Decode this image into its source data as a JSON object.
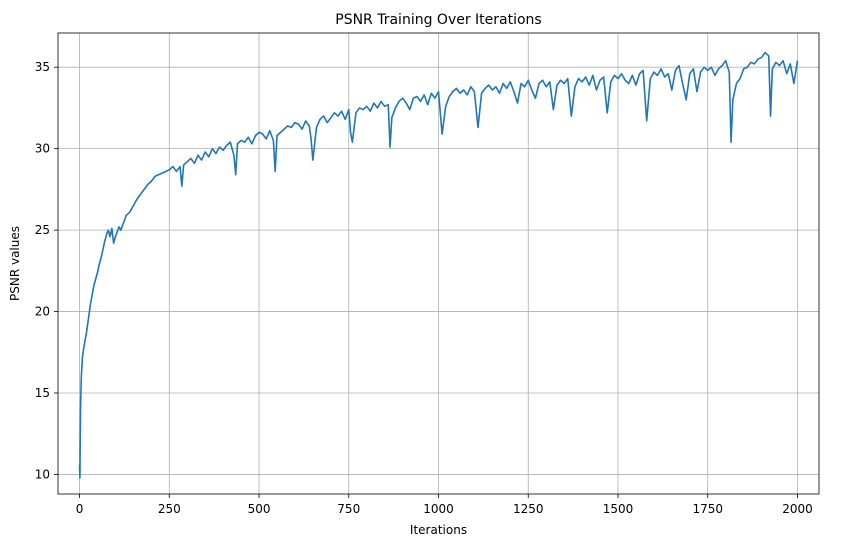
{
  "chart_data": {
    "type": "line",
    "title": "PSNR Training Over Iterations",
    "xlabel": "Iterations",
    "ylabel": "PSNR values",
    "xlim": [
      -60,
      2060
    ],
    "ylim": [
      8.8,
      37.1
    ],
    "xticks": [
      0,
      250,
      500,
      750,
      1000,
      1250,
      1500,
      1750,
      2000
    ],
    "yticks": [
      10,
      15,
      20,
      25,
      30,
      35
    ],
    "grid": true,
    "line_color": "#1f77b4",
    "series": [
      {
        "x": [
          0,
          1,
          2,
          3,
          5,
          8,
          12,
          16,
          20,
          25,
          30,
          35,
          40,
          45,
          50,
          55,
          60,
          65,
          70,
          75,
          80,
          85,
          90,
          95,
          100,
          105,
          110,
          115,
          120,
          130,
          140,
          150,
          160,
          170,
          180,
          190,
          200,
          210,
          220,
          230,
          240,
          250,
          260,
          270,
          280,
          285,
          290,
          300,
          310,
          320,
          330,
          340,
          350,
          360,
          370,
          380,
          390,
          400,
          410,
          420,
          430,
          435,
          440,
          450,
          460,
          470,
          480,
          490,
          500,
          510,
          520,
          530,
          540,
          545,
          550,
          560,
          570,
          580,
          590,
          600,
          610,
          620,
          630,
          640,
          645,
          650,
          660,
          670,
          680,
          690,
          700,
          710,
          720,
          730,
          740,
          750,
          755,
          760,
          770,
          780,
          790,
          800,
          810,
          820,
          830,
          840,
          850,
          860,
          865,
          870,
          880,
          890,
          900,
          910,
          920,
          930,
          940,
          950,
          960,
          970,
          980,
          990,
          1000,
          1010,
          1020,
          1030,
          1040,
          1050,
          1060,
          1070,
          1080,
          1090,
          1100,
          1110,
          1120,
          1130,
          1140,
          1150,
          1160,
          1170,
          1180,
          1190,
          1200,
          1210,
          1220,
          1230,
          1240,
          1250,
          1260,
          1270,
          1280,
          1290,
          1300,
          1310,
          1320,
          1330,
          1340,
          1350,
          1360,
          1370,
          1380,
          1390,
          1400,
          1410,
          1420,
          1430,
          1440,
          1450,
          1460,
          1470,
          1480,
          1490,
          1500,
          1510,
          1520,
          1530,
          1540,
          1550,
          1560,
          1570,
          1580,
          1590,
          1600,
          1610,
          1620,
          1630,
          1640,
          1650,
          1660,
          1670,
          1680,
          1690,
          1700,
          1710,
          1720,
          1730,
          1740,
          1750,
          1760,
          1770,
          1780,
          1790,
          1800,
          1810,
          1815,
          1820,
          1830,
          1840,
          1850,
          1860,
          1870,
          1880,
          1890,
          1900,
          1910,
          1920,
          1925,
          1930,
          1940,
          1950,
          1960,
          1970,
          1980,
          1990,
          2000
        ],
        "y": [
          10.6,
          9.8,
          12.5,
          14.3,
          16.0,
          17.2,
          17.8,
          18.3,
          18.8,
          19.6,
          20.4,
          21.0,
          21.6,
          22.0,
          22.4,
          22.9,
          23.3,
          23.8,
          24.3,
          24.7,
          25.0,
          24.6,
          25.1,
          24.2,
          24.6,
          24.9,
          25.2,
          25.0,
          25.3,
          25.9,
          26.1,
          26.5,
          26.9,
          27.2,
          27.5,
          27.8,
          28.0,
          28.3,
          28.4,
          28.5,
          28.6,
          28.7,
          28.9,
          28.6,
          28.9,
          27.7,
          29.0,
          29.2,
          29.4,
          29.1,
          29.6,
          29.3,
          29.8,
          29.5,
          30.0,
          29.7,
          30.1,
          29.9,
          30.2,
          30.4,
          29.6,
          28.4,
          30.3,
          30.5,
          30.4,
          30.7,
          30.3,
          30.8,
          31.0,
          30.9,
          30.6,
          31.1,
          30.5,
          28.6,
          30.8,
          31.0,
          31.2,
          31.4,
          31.3,
          31.6,
          31.5,
          31.2,
          31.7,
          31.4,
          30.6,
          29.3,
          31.3,
          31.8,
          32.0,
          31.6,
          31.9,
          32.2,
          32.0,
          32.3,
          31.8,
          32.4,
          31.0,
          30.4,
          32.2,
          32.5,
          32.4,
          32.6,
          32.3,
          32.8,
          32.5,
          32.9,
          32.6,
          32.7,
          30.1,
          31.9,
          32.5,
          32.9,
          33.1,
          32.8,
          32.4,
          33.1,
          33.2,
          32.9,
          33.3,
          32.7,
          33.4,
          33.1,
          33.5,
          30.9,
          32.6,
          33.2,
          33.5,
          33.7,
          33.4,
          33.6,
          33.3,
          33.8,
          33.5,
          31.3,
          33.4,
          33.7,
          33.9,
          33.6,
          33.8,
          33.4,
          34.0,
          33.7,
          34.1,
          33.5,
          32.8,
          34.0,
          33.8,
          34.2,
          33.6,
          33.1,
          34.0,
          34.2,
          33.8,
          34.1,
          32.4,
          33.9,
          34.2,
          34.0,
          34.3,
          32.0,
          33.8,
          34.3,
          34.1,
          34.4,
          33.9,
          34.5,
          33.6,
          34.2,
          34.4,
          32.2,
          34.1,
          34.5,
          34.3,
          34.6,
          34.2,
          34.0,
          34.5,
          33.9,
          34.6,
          34.8,
          31.7,
          34.3,
          34.7,
          34.5,
          34.9,
          34.4,
          34.6,
          33.6,
          34.8,
          35.1,
          34.0,
          33.0,
          34.6,
          34.9,
          33.5,
          34.7,
          35.0,
          34.8,
          35.0,
          34.5,
          34.9,
          35.1,
          35.4,
          34.7,
          30.4,
          33.0,
          34.0,
          34.3,
          34.9,
          35.0,
          35.3,
          35.2,
          35.5,
          35.6,
          35.9,
          35.7,
          32.0,
          34.9,
          35.3,
          35.1,
          35.4,
          34.6,
          35.2,
          34.0,
          35.4
        ]
      }
    ]
  }
}
